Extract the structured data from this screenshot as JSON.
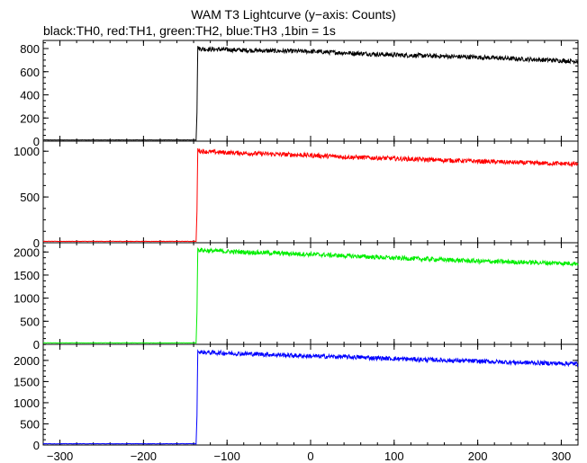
{
  "chart_data": {
    "type": "line",
    "title": "WAM T3 Lightcurve (y−axis: Counts)",
    "subtitle": "black:TH0, red:TH1, green:TH2, blue:TH3 ,1bin = 1s",
    "xlim": [
      -320,
      320
    ],
    "x_ticks": [
      "−300",
      "−200",
      "−100",
      "0",
      "100",
      "200",
      "300"
    ],
    "x_tick_values": [
      -300,
      -200,
      -100,
      0,
      100,
      200,
      300
    ],
    "grid": false,
    "panels": [
      {
        "name": "TH0",
        "color": "#000000",
        "ylim": [
          0,
          870
        ],
        "y_ticks": [
          "0",
          "200",
          "400",
          "600",
          "800"
        ],
        "y_tick_values": [
          0,
          200,
          400,
          600,
          800
        ],
        "x": [
          -320,
          -137,
          -136,
          -135,
          -134,
          -125,
          -100,
          -50,
          0,
          50,
          100,
          150,
          200,
          250,
          320
        ],
        "values": [
          10,
          10,
          250,
          820,
          800,
          795,
          790,
          780,
          775,
          760,
          745,
          735,
          725,
          710,
          690
        ]
      },
      {
        "name": "TH1",
        "color": "#ff0000",
        "ylim": [
          0,
          1110
        ],
        "y_ticks": [
          "0",
          "500",
          "1000"
        ],
        "y_tick_values": [
          0,
          500,
          1000
        ],
        "x": [
          -320,
          -137,
          -136,
          -135,
          -134,
          -125,
          -100,
          -50,
          0,
          50,
          100,
          150,
          200,
          250,
          320
        ],
        "values": [
          15,
          15,
          350,
          1030,
          1005,
          995,
          985,
          970,
          955,
          935,
          920,
          905,
          890,
          875,
          860
        ]
      },
      {
        "name": "TH2",
        "color": "#00ee00",
        "ylim": [
          0,
          2200
        ],
        "y_ticks": [
          "0",
          "500",
          "1000",
          "1500",
          "2000"
        ],
        "y_tick_values": [
          0,
          500,
          1000,
          1500,
          2000
        ],
        "x": [
          -320,
          -137,
          -136,
          -135,
          -134,
          -125,
          -100,
          -50,
          0,
          50,
          100,
          150,
          200,
          250,
          320
        ],
        "values": [
          30,
          30,
          700,
          2080,
          2050,
          2030,
          2010,
          1980,
          1950,
          1910,
          1870,
          1840,
          1800,
          1780,
          1750
        ]
      },
      {
        "name": "TH3",
        "color": "#0000ff",
        "ylim": [
          0,
          2380
        ],
        "y_ticks": [
          "0",
          "500",
          "1000",
          "1500",
          "2000"
        ],
        "y_tick_values": [
          0,
          500,
          1000,
          1500,
          2000
        ],
        "x": [
          -320,
          -137,
          -136,
          -135,
          -134,
          -125,
          -100,
          -50,
          0,
          50,
          100,
          150,
          200,
          250,
          320
        ],
        "values": [
          30,
          30,
          700,
          2230,
          2200,
          2190,
          2170,
          2140,
          2100,
          2080,
          2040,
          2010,
          1980,
          1950,
          1920
        ]
      }
    ]
  }
}
